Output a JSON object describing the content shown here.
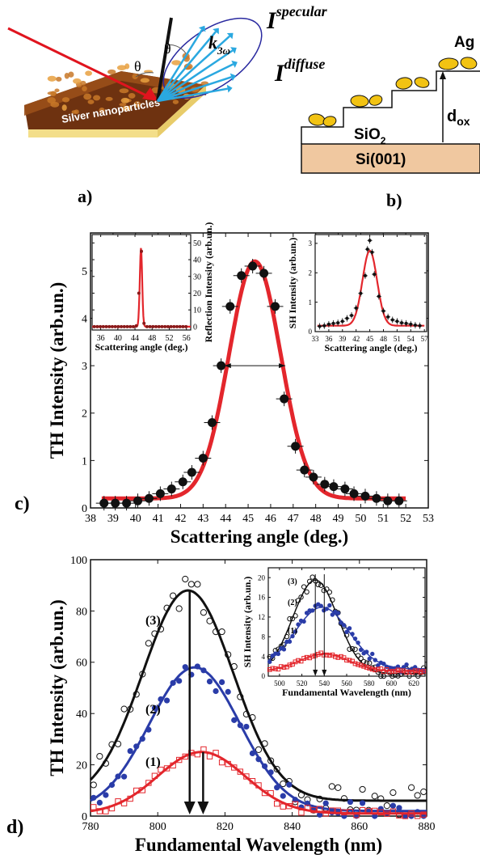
{
  "panel_labels": {
    "a": "a)",
    "b": "b)",
    "c": "c)",
    "d": "d)"
  },
  "panel_a": {
    "sample_label": "Silver nanoparticles",
    "theta": "θ",
    "k_label": "k",
    "k_sub": "3ω",
    "specular_main": "I",
    "specular_sup": "specular",
    "diffuse_main": "I",
    "diffuse_sup": "diffuse"
  },
  "panel_b": {
    "ag": "Ag",
    "sio2_main": "SiO",
    "sio2_sub": "2",
    "dox_main": "d",
    "dox_sub": "ox",
    "si": "Si(001)"
  },
  "chart_data": [
    {
      "id": "c-main",
      "type": "scatter",
      "xlabel": "Scattering angle (deg.)",
      "ylabel": "TH Intensity (arb.un.)",
      "xlim": [
        38,
        53
      ],
      "ylim": [
        0,
        5.8
      ],
      "xticks": [
        38,
        39,
        40,
        41,
        42,
        43,
        44,
        45,
        46,
        47,
        48,
        49,
        50,
        51,
        52,
        53
      ],
      "yticks": [
        0,
        1,
        2,
        3,
        4,
        5
      ],
      "points": [
        [
          38.6,
          0.1
        ],
        [
          39.1,
          0.1
        ],
        [
          39.6,
          0.1
        ],
        [
          40.1,
          0.15
        ],
        [
          40.6,
          0.2
        ],
        [
          41.1,
          0.3
        ],
        [
          41.6,
          0.4
        ],
        [
          42.1,
          0.55
        ],
        [
          42.5,
          0.75
        ],
        [
          43.0,
          1.05
        ],
        [
          43.4,
          1.8
        ],
        [
          43.8,
          3.0
        ],
        [
          44.2,
          4.25
        ],
        [
          44.7,
          4.9
        ],
        [
          45.2,
          5.1
        ],
        [
          45.7,
          4.95
        ],
        [
          46.2,
          4.25
        ],
        [
          46.6,
          2.3
        ],
        [
          47.1,
          1.3
        ],
        [
          47.5,
          0.8
        ],
        [
          47.9,
          0.65
        ],
        [
          48.4,
          0.5
        ],
        [
          48.8,
          0.45
        ],
        [
          49.3,
          0.4
        ],
        [
          49.7,
          0.3
        ],
        [
          50.2,
          0.25
        ],
        [
          50.7,
          0.2
        ],
        [
          51.2,
          0.15
        ],
        [
          51.7,
          0.15
        ]
      ],
      "fit": {
        "center": 45.3,
        "sigma": 1.15,
        "amplitude": 5.0,
        "baseline": 0.2
      },
      "fwhm_y": 3.0
    },
    {
      "id": "c-inset-left",
      "type": "scatter",
      "xlabel": "Scattering angle (deg.)",
      "ylabel": "Reflection Intensity (arb.un.)",
      "xlim": [
        34,
        57
      ],
      "ylim": [
        -2,
        55
      ],
      "xticks": [
        36,
        40,
        44,
        48,
        52,
        56
      ],
      "yticks": [
        0,
        10,
        20,
        30,
        40,
        50
      ],
      "points": [
        [
          34.5,
          0
        ],
        [
          35.2,
          0
        ],
        [
          35.9,
          0
        ],
        [
          36.6,
          0
        ],
        [
          37.3,
          0
        ],
        [
          38.0,
          0
        ],
        [
          38.7,
          0
        ],
        [
          39.4,
          0
        ],
        [
          40.1,
          0
        ],
        [
          40.8,
          0
        ],
        [
          41.5,
          0
        ],
        [
          42.2,
          0
        ],
        [
          42.9,
          0
        ],
        [
          43.6,
          0
        ],
        [
          44.3,
          0.5
        ],
        [
          44.9,
          20
        ],
        [
          45.5,
          45
        ],
        [
          46.1,
          2
        ],
        [
          46.8,
          0
        ],
        [
          47.5,
          0
        ],
        [
          48.2,
          0
        ],
        [
          48.9,
          0
        ],
        [
          49.6,
          0
        ],
        [
          50.3,
          0
        ],
        [
          51.0,
          0
        ],
        [
          51.7,
          0
        ],
        [
          52.4,
          0
        ],
        [
          53.1,
          0
        ],
        [
          53.8,
          0
        ],
        [
          54.5,
          0
        ],
        [
          55.2,
          0
        ],
        [
          55.9,
          0
        ]
      ],
      "fit": {
        "center": 45.4,
        "sigma": 0.28,
        "amplitude": 47,
        "baseline": 0
      }
    },
    {
      "id": "c-inset-right",
      "type": "scatter",
      "xlabel": "Scattering angle (deg.)",
      "ylabel": "SH Intensity (arb.un.)",
      "xlim": [
        33,
        57.5
      ],
      "ylim": [
        0,
        3.3
      ],
      "xticks": [
        33,
        36,
        39,
        42,
        45,
        48,
        51,
        54,
        57
      ],
      "yticks": [
        0,
        1,
        2,
        3
      ],
      "points": [
        [
          34,
          0.18
        ],
        [
          35,
          0.2
        ],
        [
          36,
          0.25
        ],
        [
          37,
          0.28
        ],
        [
          38,
          0.3
        ],
        [
          39,
          0.35
        ],
        [
          40,
          0.45
        ],
        [
          41,
          0.55
        ],
        [
          42,
          0.8
        ],
        [
          43,
          1.3
        ],
        [
          44,
          1.9
        ],
        [
          44.5,
          2.8
        ],
        [
          45,
          3.1
        ],
        [
          45.5,
          2.7
        ],
        [
          46,
          1.95
        ],
        [
          47,
          1.2
        ],
        [
          48,
          0.7
        ],
        [
          49,
          0.5
        ],
        [
          50,
          0.4
        ],
        [
          51,
          0.35
        ],
        [
          52,
          0.3
        ],
        [
          53,
          0.28
        ],
        [
          54,
          0.25
        ],
        [
          55,
          0.22
        ],
        [
          56,
          0.2
        ]
      ],
      "fit": {
        "center": 45.0,
        "sigma": 1.6,
        "amplitude": 2.55,
        "baseline": 0.2
      }
    },
    {
      "id": "d-main",
      "type": "scatter",
      "xlabel": "Fundamental Wavelength (nm)",
      "ylabel": "TH Intensity (arb.un.)",
      "xlim": [
        780,
        880
      ],
      "ylim": [
        0,
        100
      ],
      "xticks": [
        780,
        800,
        820,
        840,
        860,
        880
      ],
      "yticks": [
        0,
        20,
        40,
        60,
        80,
        100
      ],
      "series": [
        {
          "name": "(3)",
          "color": "#111111",
          "marker": "open-circle",
          "amplitude": 82,
          "center": 809,
          "sigma": 13.5,
          "baseline": 6,
          "noise_seed": 3
        },
        {
          "name": "(2)",
          "color": "#2a3ca8",
          "marker": "filled-circle",
          "amplitude": 56,
          "center": 811,
          "sigma": 13.5,
          "baseline": 2,
          "noise_seed": 7
        },
        {
          "name": "(1)",
          "color": "#e3262c",
          "marker": "open-square",
          "amplitude": 24,
          "center": 813,
          "sigma": 13.0,
          "baseline": 1,
          "noise_seed": 11
        }
      ],
      "arrows_x": [
        809.5,
        813.5
      ]
    },
    {
      "id": "d-inset",
      "type": "scatter",
      "xlabel": "Fundamental Wavelength (nm)",
      "ylabel": "SH Intensity (arb.un.)",
      "xlim": [
        490,
        630
      ],
      "ylim": [
        0,
        22
      ],
      "xticks": [
        500,
        520,
        540,
        560,
        580,
        600,
        620
      ],
      "yticks": [
        0,
        4,
        8,
        12,
        16,
        20
      ],
      "series": [
        {
          "name": "(3)",
          "color": "#111111",
          "marker": "open-circle",
          "amplitude": 19,
          "center": 532,
          "sigma": 20,
          "baseline": 0.5,
          "noise_seed": 5
        },
        {
          "name": "(2)",
          "color": "#2a3ca8",
          "marker": "filled-circle",
          "amplitude": 12.5,
          "center": 538,
          "sigma": 24,
          "baseline": 1.5,
          "noise_seed": 9
        },
        {
          "name": "(1)",
          "color": "#e3262c",
          "marker": "open-square",
          "amplitude": 3.5,
          "center": 540,
          "sigma": 22,
          "baseline": 1,
          "noise_seed": 13
        }
      ],
      "arrows_x": [
        532,
        540
      ]
    }
  ],
  "colors": {
    "fit_red": "#e3262c",
    "dark": "#111111",
    "blue": "#2a3ca8",
    "substrate": "#f0c8a0",
    "particle": "#f2c313",
    "arrow_blue": "#2aa8e0"
  }
}
